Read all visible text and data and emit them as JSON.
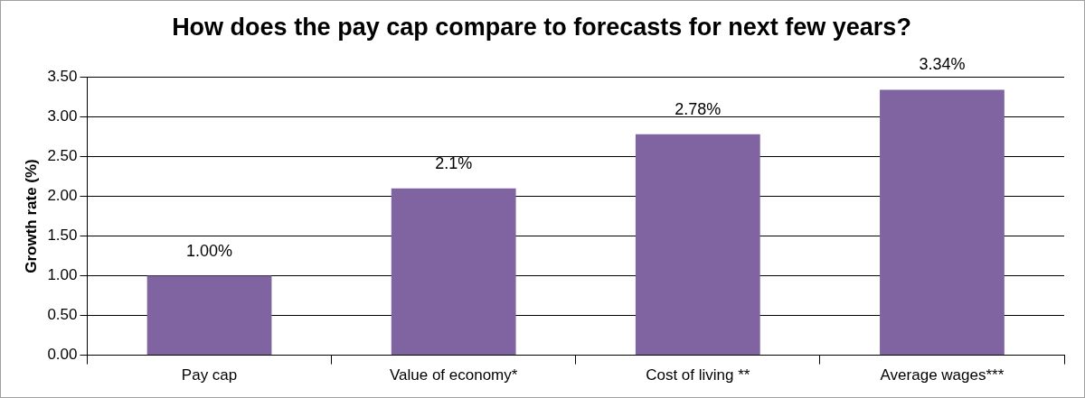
{
  "chart_data": {
    "type": "bar",
    "title": "How does the pay cap compare to forecasts for next few years?",
    "ylabel": "Growth rate (%)",
    "categories": [
      "Pay cap",
      "Value of economy*",
      "Cost of living **",
      "Average wages***"
    ],
    "values": [
      1.0,
      2.1,
      2.78,
      3.34
    ],
    "color": "#8064a2",
    "value_labels": [
      "1.00%",
      "2.1%",
      "2.78%",
      "3.34%"
    ],
    "ylim": [
      0,
      3.5
    ],
    "yticks": [
      {
        "value": 0,
        "label": "0.00"
      },
      {
        "value": 0.5,
        "label": "0.50"
      },
      {
        "value": 1,
        "label": "1.00"
      },
      {
        "value": 1.5,
        "label": "1.50"
      },
      {
        "value": 2,
        "label": "2.00"
      },
      {
        "value": 2.5,
        "label": "2.50"
      },
      {
        "value": 3,
        "label": "3.00"
      },
      {
        "value": 3.5,
        "label": "3.50"
      }
    ],
    "grid": "y",
    "legend": false
  }
}
